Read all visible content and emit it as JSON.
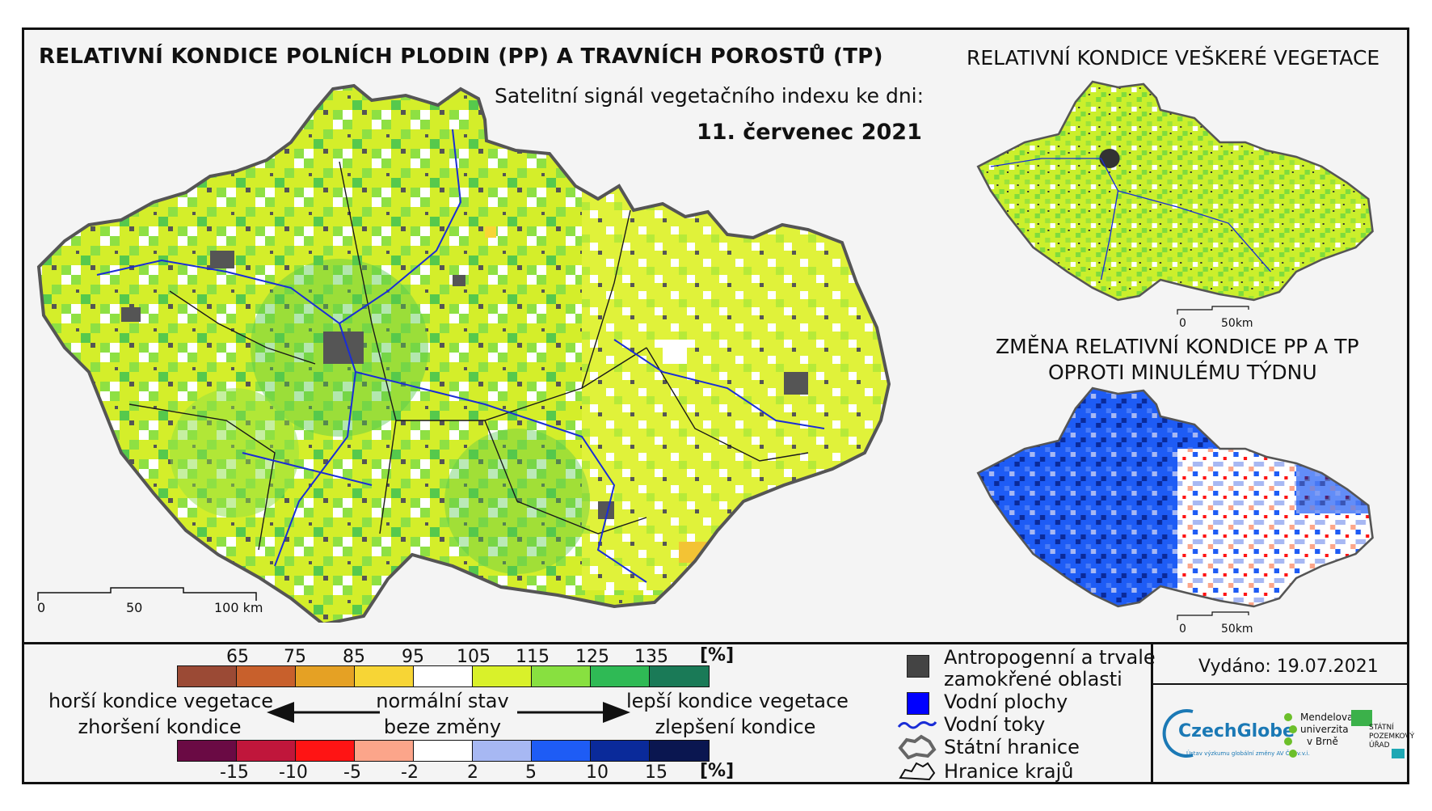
{
  "titles": {
    "main": "RELATIVNÍ KONDICE POLNÍCH PLODIN (PP) A TRAVNÍCH POROSTŮ (TP)",
    "subtitle": "Satelitní signál vegetačního indexu ke dni:",
    "date": "11. červenec 2021",
    "vegetation": "RELATIVNÍ KONDICE VEŠKERÉ VEGETACE",
    "change_line1": "ZMĚNA RELATIVNÍ KONDICE PP A TP",
    "change_line2": "OPROTI MINULÉMU TÝDNU"
  },
  "scale_main": {
    "labels": [
      "0",
      "50",
      "100 km"
    ]
  },
  "scale_small": {
    "labels": [
      "0",
      "50km"
    ]
  },
  "condition_legend": {
    "ticks": [
      "65",
      "75",
      "85",
      "95",
      "105",
      "115",
      "125",
      "135"
    ],
    "unit": "[%]",
    "colors": [
      "#9b4a35",
      "#c8602c",
      "#e5a124",
      "#f7d535",
      "#ffffff",
      "#d9f12a",
      "#88e040",
      "#2fba55",
      "#1a7a57"
    ]
  },
  "change_legend": {
    "ticks": [
      "-15",
      "-10",
      "-5",
      "-2",
      "2",
      "5",
      "10",
      "15"
    ],
    "unit": "[%]",
    "colors": [
      "#6a0a44",
      "#c0163b",
      "#fe1414",
      "#fca58a",
      "#ffffff",
      "#a7b8f3",
      "#1e5cf5",
      "#0a2a9a",
      "#0a1650"
    ]
  },
  "captions": {
    "worse_1": "horší kondice vegetace",
    "worse_2": "zhoršení kondice",
    "normal_1": "normální stav",
    "normal_2": "beze změny",
    "better_1": "lepší kondice vegetace",
    "better_2": "zlepšení kondice"
  },
  "map_legend": {
    "anthropogenic_1": "Antropogenní a trvale",
    "anthropogenic_2": "zamokřené oblasti",
    "water_bodies": "Vodní plochy",
    "water_streams": "Vodní toky",
    "state_border": "Státní hranice",
    "region_border": "Hranice krajů",
    "colors": {
      "anthropogenic": "#444444",
      "water_bodies": "#0000ff",
      "water_streams": "#1a2dd6"
    }
  },
  "issued": "Vydáno: 19.07.2021",
  "logos": {
    "czechglobe": "CzechGlobe",
    "czechglobe_sub": "Ústav výzkumu globální změny AV ČR, v.v.i.",
    "mendel_1": "Mendelova",
    "mendel_2": "univerzita",
    "mendel_3": "v Brně",
    "spu_1": "STÁTNÍ",
    "spu_2": "POZEMKOVÝ",
    "spu_3": "ÚŘAD"
  }
}
